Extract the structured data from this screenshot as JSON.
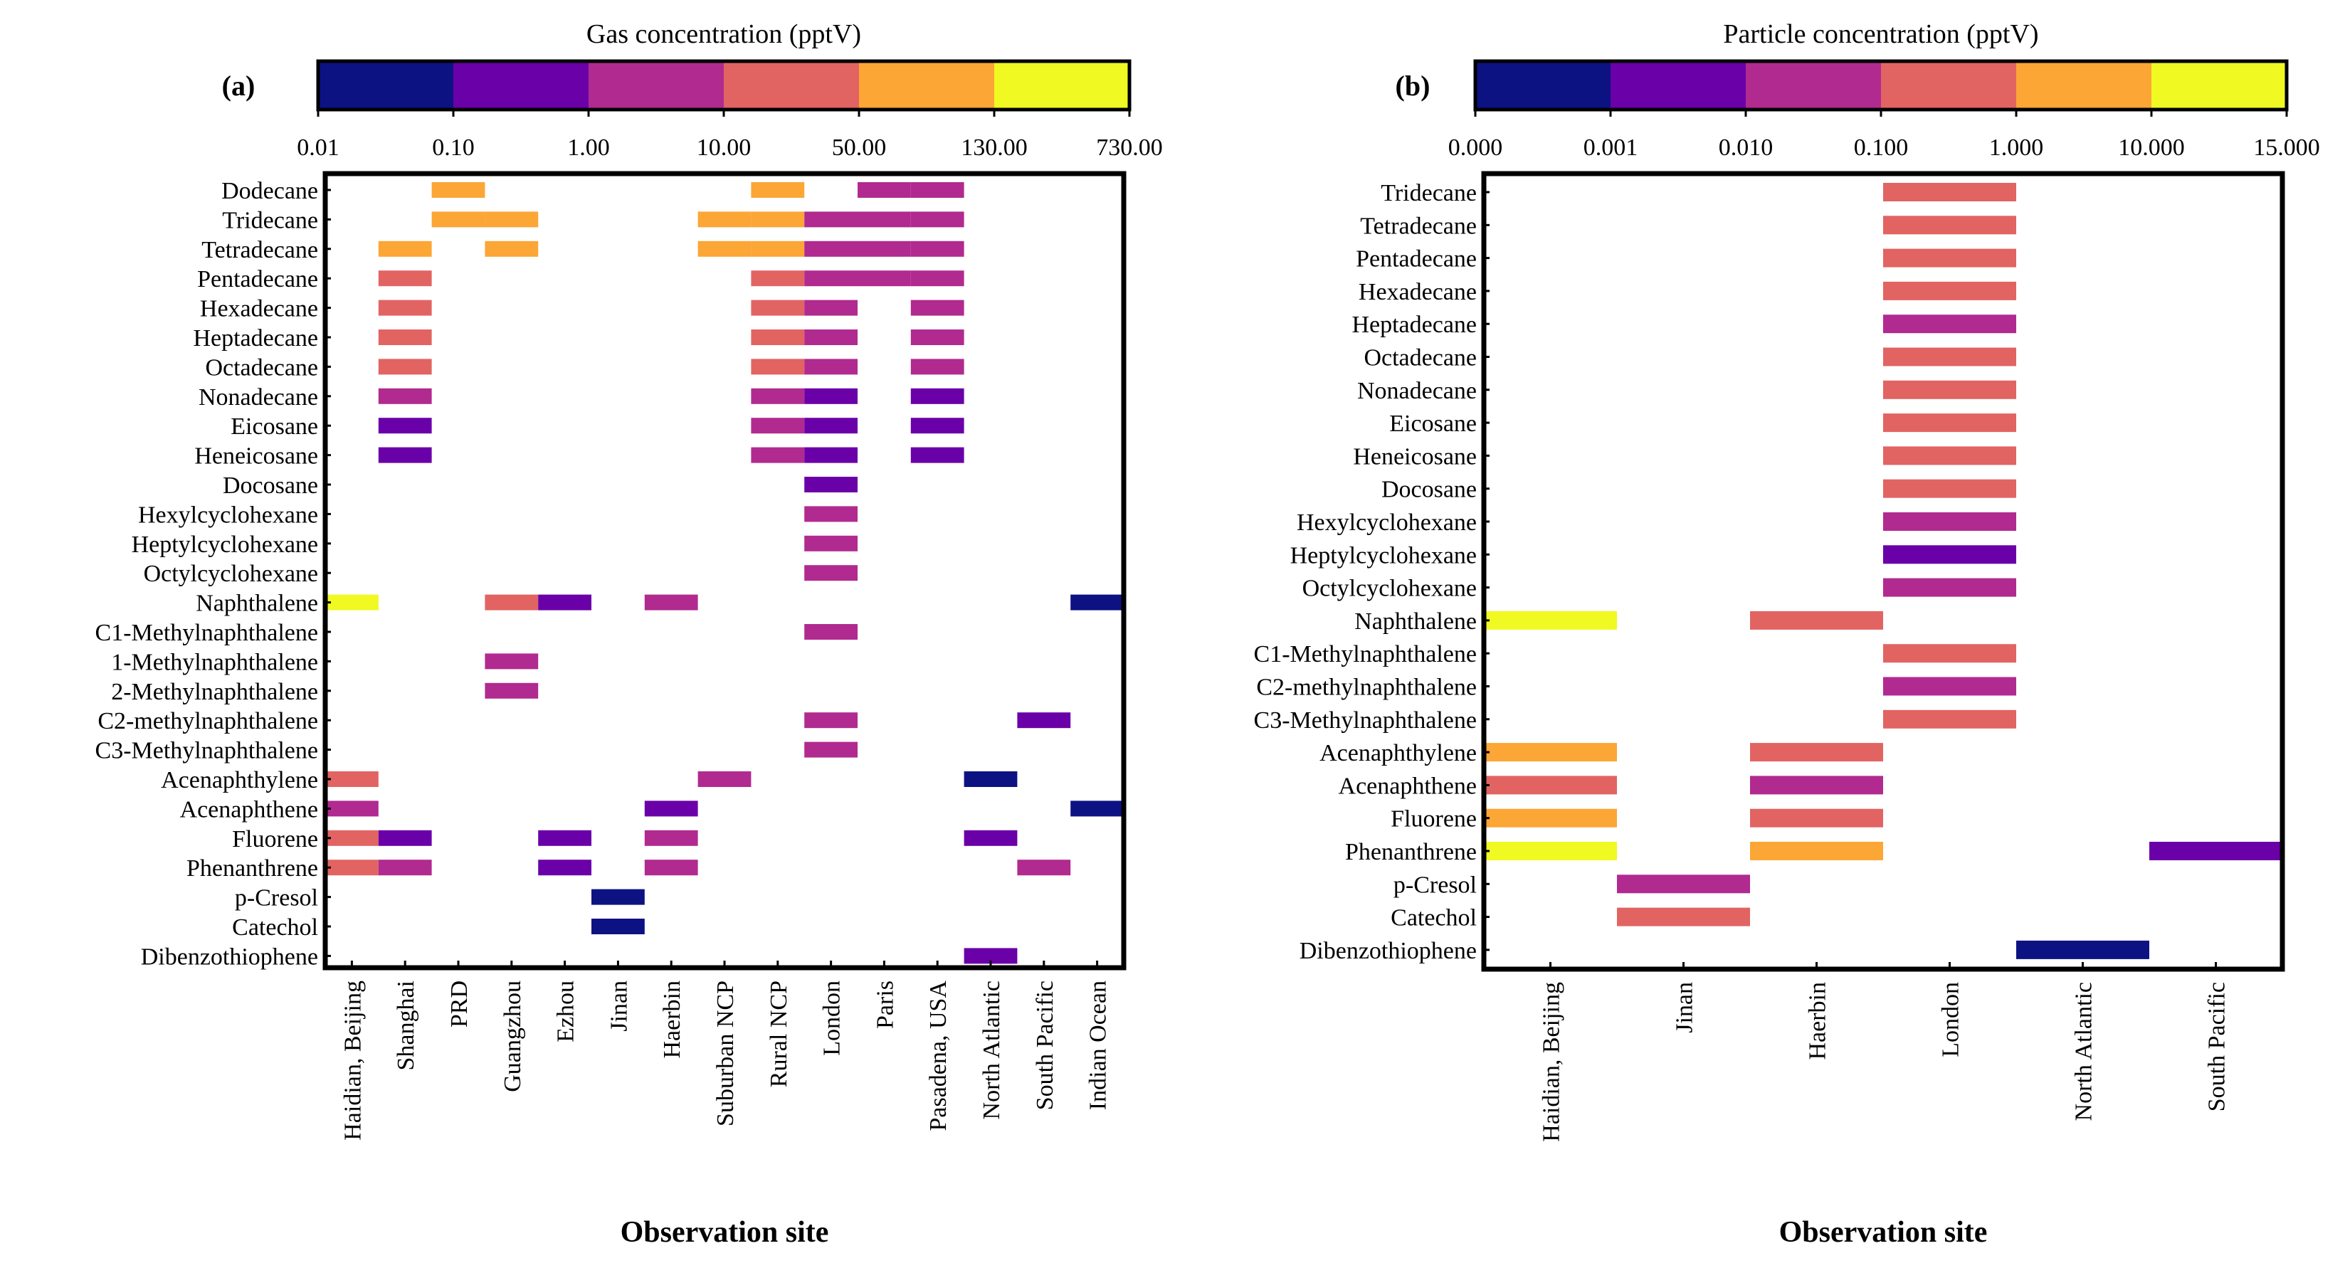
{
  "chart_data": [
    {
      "type": "heatmap",
      "panel_label": "(a)",
      "colorbar": {
        "title": "Gas concentration (pptV)",
        "ticks": [
          "0.01",
          "0.10",
          "1.00",
          "10.00",
          "50.00",
          "130.00",
          "730.00"
        ],
        "colors": [
          "#0d1283",
          "#6a00a8",
          "#b12a90",
          "#e16462",
          "#fca636",
          "#f0f921"
        ],
        "level_ranges": [
          "0.01-0.10",
          "0.10-1.00",
          "1.00-10.00",
          "10.00-50.00",
          "50.00-130.00",
          "130.00-730.00"
        ]
      },
      "xlabel": "Observation site",
      "sites": [
        "Haidian, Beijing",
        "Shanghai",
        "PRD",
        "Guangzhou",
        "Ezhou",
        "Jinan",
        "Haerbin",
        "Suburban NCP",
        "Rural NCP",
        "London",
        "Paris",
        "Pasadena, USA",
        "North Atlantic",
        "South Pacific",
        "Indian Ocean"
      ],
      "compounds": [
        "Dodecane",
        "Tridecane",
        "Tetradecane",
        "Pentadecane",
        "Hexadecane",
        "Heptadecane",
        "Octadecane",
        "Nonadecane",
        "Eicosane",
        "Heneicosane",
        "Docosane",
        "Hexylcyclohexane",
        "Heptylcyclohexane",
        "Octylcyclohexane",
        "Naphthalene",
        "C1-Methylnaphthalene",
        "1-Methylnaphthalene",
        "2-Methylnaphthalene",
        "C2-methylnaphthalene",
        "C3-Methylnaphthalene",
        "Acenaphthylene",
        "Acenaphthene",
        "Fluorene",
        "Phenanthrene",
        "p-Cresol",
        "Catechol",
        "Dibenzothiophene"
      ],
      "cells": [
        [
          "Dodecane",
          2,
          4
        ],
        [
          "Dodecane",
          8,
          4
        ],
        [
          "Dodecane",
          10,
          2
        ],
        [
          "Dodecane",
          11,
          2
        ],
        [
          "Tridecane",
          2,
          4
        ],
        [
          "Tridecane",
          3,
          4
        ],
        [
          "Tridecane",
          7,
          4
        ],
        [
          "Tridecane",
          8,
          4
        ],
        [
          "Tridecane",
          9,
          2
        ],
        [
          "Tridecane",
          10,
          2
        ],
        [
          "Tridecane",
          11,
          2
        ],
        [
          "Tetradecane",
          1,
          4
        ],
        [
          "Tetradecane",
          3,
          4
        ],
        [
          "Tetradecane",
          7,
          4
        ],
        [
          "Tetradecane",
          8,
          4
        ],
        [
          "Tetradecane",
          9,
          2
        ],
        [
          "Tetradecane",
          10,
          2
        ],
        [
          "Tetradecane",
          11,
          2
        ],
        [
          "Pentadecane",
          1,
          3
        ],
        [
          "Pentadecane",
          8,
          3
        ],
        [
          "Pentadecane",
          9,
          2
        ],
        [
          "Pentadecane",
          10,
          2
        ],
        [
          "Pentadecane",
          11,
          2
        ],
        [
          "Hexadecane",
          1,
          3
        ],
        [
          "Hexadecane",
          8,
          3
        ],
        [
          "Hexadecane",
          9,
          2
        ],
        [
          "Hexadecane",
          11,
          2
        ],
        [
          "Heptadecane",
          1,
          3
        ],
        [
          "Heptadecane",
          8,
          3
        ],
        [
          "Heptadecane",
          9,
          2
        ],
        [
          "Heptadecane",
          11,
          2
        ],
        [
          "Octadecane",
          1,
          3
        ],
        [
          "Octadecane",
          8,
          3
        ],
        [
          "Octadecane",
          9,
          2
        ],
        [
          "Octadecane",
          11,
          2
        ],
        [
          "Nonadecane",
          1,
          2
        ],
        [
          "Nonadecane",
          8,
          2
        ],
        [
          "Nonadecane",
          9,
          1
        ],
        [
          "Nonadecane",
          11,
          1
        ],
        [
          "Eicosane",
          1,
          1
        ],
        [
          "Eicosane",
          8,
          2
        ],
        [
          "Eicosane",
          9,
          1
        ],
        [
          "Eicosane",
          11,
          1
        ],
        [
          "Heneicosane",
          1,
          1
        ],
        [
          "Heneicosane",
          8,
          2
        ],
        [
          "Heneicosane",
          9,
          1
        ],
        [
          "Heneicosane",
          11,
          1
        ],
        [
          "Docosane",
          9,
          1
        ],
        [
          "Hexylcyclohexane",
          9,
          2
        ],
        [
          "Heptylcyclohexane",
          9,
          2
        ],
        [
          "Octylcyclohexane",
          9,
          2
        ],
        [
          "Naphthalene",
          0,
          5
        ],
        [
          "Naphthalene",
          3,
          3
        ],
        [
          "Naphthalene",
          4,
          1
        ],
        [
          "Naphthalene",
          6,
          2
        ],
        [
          "Naphthalene",
          14,
          0
        ],
        [
          "C1-Methylnaphthalene",
          9,
          2
        ],
        [
          "1-Methylnaphthalene",
          3,
          2
        ],
        [
          "2-Methylnaphthalene",
          3,
          2
        ],
        [
          "C2-methylnaphthalene",
          9,
          2
        ],
        [
          "C2-methylnaphthalene",
          13,
          1
        ],
        [
          "C3-Methylnaphthalene",
          9,
          2
        ],
        [
          "Acenaphthylene",
          0,
          3
        ],
        [
          "Acenaphthylene",
          7,
          2
        ],
        [
          "Acenaphthylene",
          12,
          0
        ],
        [
          "Acenaphthene",
          0,
          2
        ],
        [
          "Acenaphthene",
          6,
          1
        ],
        [
          "Acenaphthene",
          14,
          0
        ],
        [
          "Fluorene",
          0,
          3
        ],
        [
          "Fluorene",
          1,
          1
        ],
        [
          "Fluorene",
          4,
          1
        ],
        [
          "Fluorene",
          6,
          2
        ],
        [
          "Fluorene",
          12,
          1
        ],
        [
          "Phenanthrene",
          0,
          3
        ],
        [
          "Phenanthrene",
          1,
          2
        ],
        [
          "Phenanthrene",
          4,
          1
        ],
        [
          "Phenanthrene",
          6,
          2
        ],
        [
          "Phenanthrene",
          13,
          2
        ],
        [
          "p-Cresol",
          5,
          0
        ],
        [
          "Catechol",
          5,
          0
        ],
        [
          "Dibenzothiophene",
          12,
          1
        ]
      ]
    },
    {
      "type": "heatmap",
      "panel_label": "(b)",
      "colorbar": {
        "title": "Particle concentration (pptV)",
        "ticks": [
          "0.000",
          "0.001",
          "0.010",
          "0.100",
          "1.000",
          "10.000",
          "15.000"
        ],
        "colors": [
          "#0d1283",
          "#6a00a8",
          "#b12a90",
          "#e16462",
          "#fca636",
          "#f0f921"
        ],
        "level_ranges": [
          "0.000-0.001",
          "0.001-0.010",
          "0.010-0.100",
          "0.100-1.000",
          "1.000-10.000",
          "10.000-15.000"
        ]
      },
      "xlabel": "Observation site",
      "sites": [
        "Haidian, Beijing",
        "Jinan",
        "Haerbin",
        "London",
        "North Atlantic",
        "South Pacific"
      ],
      "compounds": [
        "Tridecane",
        "Tetradecane",
        "Pentadecane",
        "Hexadecane",
        "Heptadecane",
        "Octadecane",
        "Nonadecane",
        "Eicosane",
        "Heneicosane",
        "Docosane",
        "Hexylcyclohexane",
        "Heptylcyclohexane",
        "Octylcyclohexane",
        "Naphthalene",
        "C1-Methylnaphthalene",
        "C2-methylnaphthalene",
        "C3-Methylnaphthalene",
        "Acenaphthylene",
        "Acenaphthene",
        "Fluorene",
        "Phenanthrene",
        "p-Cresol",
        "Catechol",
        "Dibenzothiophene"
      ],
      "cells": [
        [
          "Tridecane",
          3,
          3
        ],
        [
          "Tetradecane",
          3,
          3
        ],
        [
          "Pentadecane",
          3,
          3
        ],
        [
          "Hexadecane",
          3,
          3
        ],
        [
          "Heptadecane",
          3,
          2
        ],
        [
          "Octadecane",
          3,
          3
        ],
        [
          "Nonadecane",
          3,
          3
        ],
        [
          "Eicosane",
          3,
          3
        ],
        [
          "Heneicosane",
          3,
          3
        ],
        [
          "Docosane",
          3,
          3
        ],
        [
          "Hexylcyclohexane",
          3,
          2
        ],
        [
          "Heptylcyclohexane",
          3,
          1
        ],
        [
          "Octylcyclohexane",
          3,
          2
        ],
        [
          "Naphthalene",
          0,
          5
        ],
        [
          "Naphthalene",
          2,
          3
        ],
        [
          "C1-Methylnaphthalene",
          3,
          3
        ],
        [
          "C2-methylnaphthalene",
          3,
          2
        ],
        [
          "C3-Methylnaphthalene",
          3,
          3
        ],
        [
          "Acenaphthylene",
          0,
          4
        ],
        [
          "Acenaphthylene",
          2,
          3
        ],
        [
          "Acenaphthene",
          0,
          3
        ],
        [
          "Acenaphthene",
          2,
          2
        ],
        [
          "Fluorene",
          0,
          4
        ],
        [
          "Fluorene",
          2,
          3
        ],
        [
          "Phenanthrene",
          0,
          5
        ],
        [
          "Phenanthrene",
          2,
          4
        ],
        [
          "Phenanthrene",
          5,
          1
        ],
        [
          "p-Cresol",
          1,
          2
        ],
        [
          "Catechol",
          1,
          3
        ],
        [
          "Dibenzothiophene",
          4,
          0
        ]
      ]
    }
  ]
}
